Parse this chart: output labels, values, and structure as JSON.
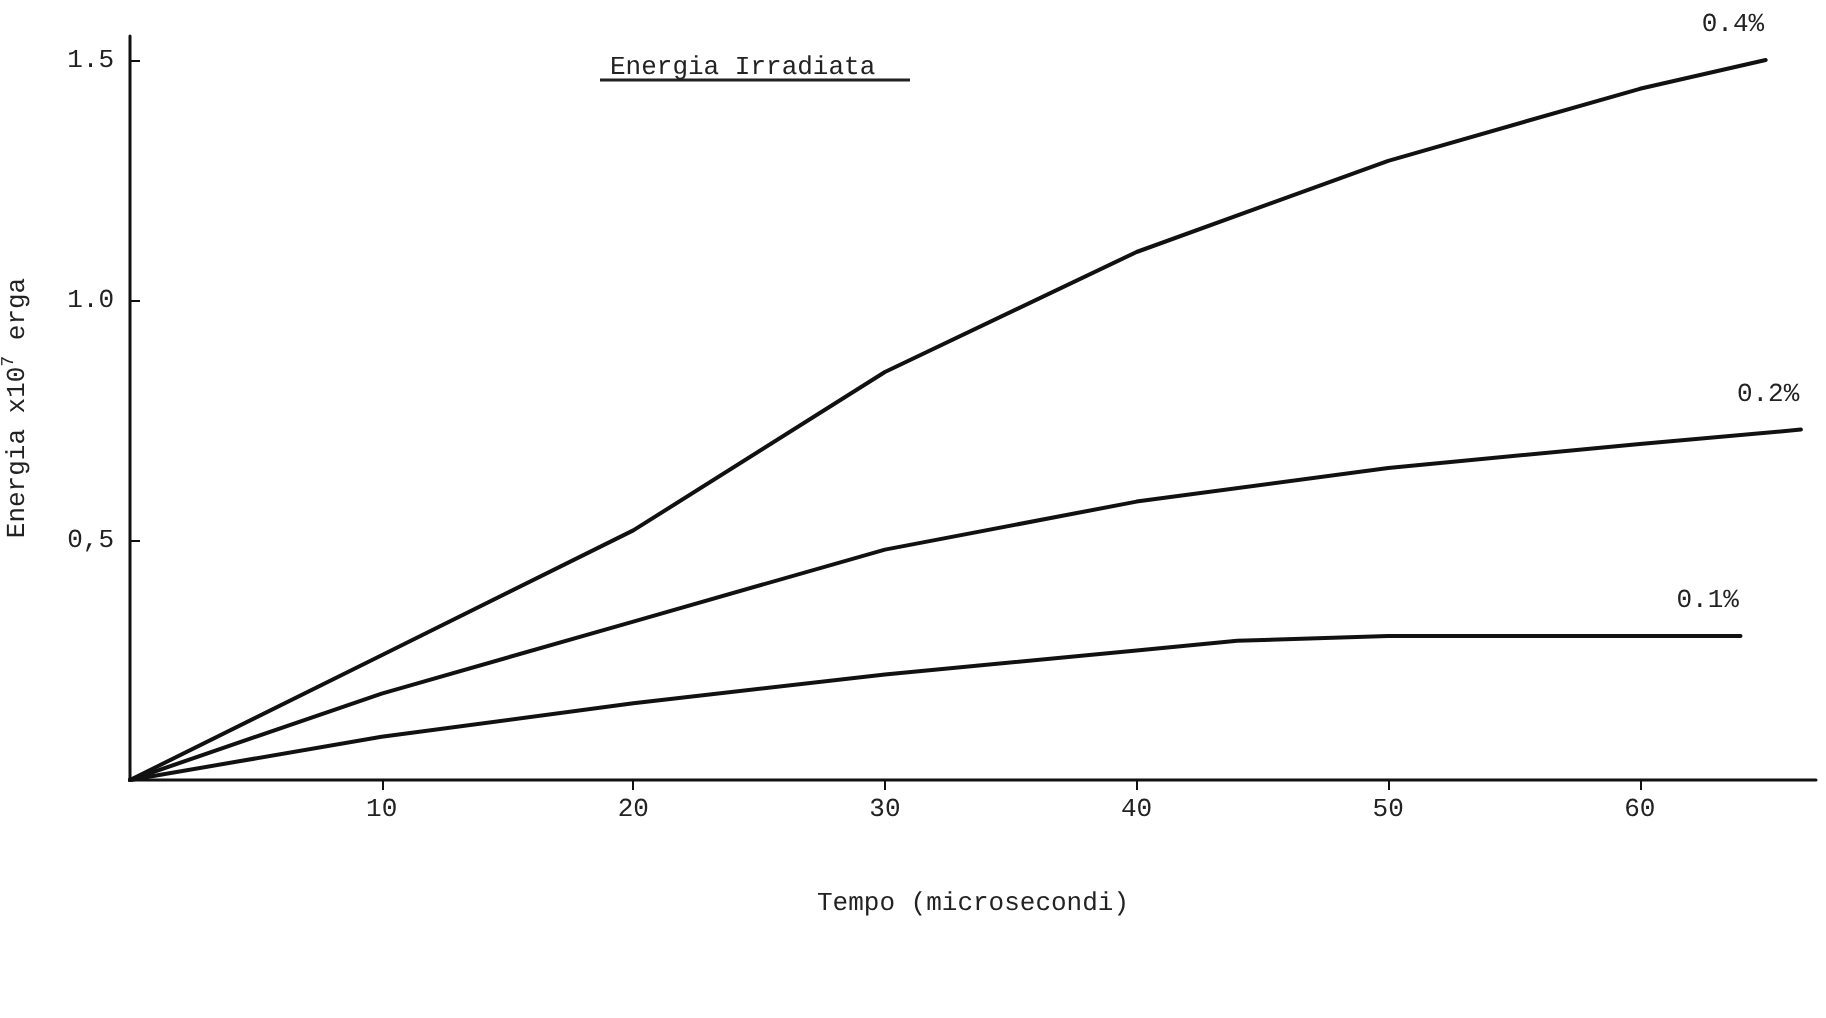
{
  "chart_data": {
    "type": "line",
    "title": "Energia Irradiata",
    "xlabel": "Tempo (microsecondi)",
    "ylabel": "Energia x10$^{7}$ erga",
    "series": [
      {
        "name": "0.4%",
        "color": "#111111",
        "x": [
          0,
          10,
          20,
          30,
          40,
          50,
          60,
          65
        ],
        "values": [
          0,
          0.26,
          0.52,
          0.85,
          1.1,
          1.29,
          1.44,
          1.5
        ]
      },
      {
        "name": "0.2%",
        "color": "#111111",
        "x": [
          0,
          10,
          20,
          30,
          40,
          50,
          60,
          66.4
        ],
        "values": [
          0,
          0.18,
          0.33,
          0.48,
          0.58,
          0.65,
          0.7,
          0.73
        ]
      },
      {
        "name": "0.1%",
        "color": "#111111",
        "x": [
          0,
          10,
          20,
          30,
          40,
          44,
          50,
          60,
          64
        ],
        "values": [
          0,
          0.09,
          0.16,
          0.22,
          0.27,
          0.29,
          0.3,
          0.3,
          0.3
        ]
      }
    ],
    "xlim": [
      0,
      67
    ],
    "ylim": [
      0,
      1.55
    ],
    "xticks": [
      10,
      20,
      30,
      40,
      50,
      60
    ],
    "yticks": [
      {
        "value": 0.5,
        "label": "0,5"
      },
      {
        "value": 1,
        "label": "1.0"
      },
      1.5
    ],
    "grid": false,
    "legend": false,
    "marker": "none",
    "line_style": "solid"
  }
}
